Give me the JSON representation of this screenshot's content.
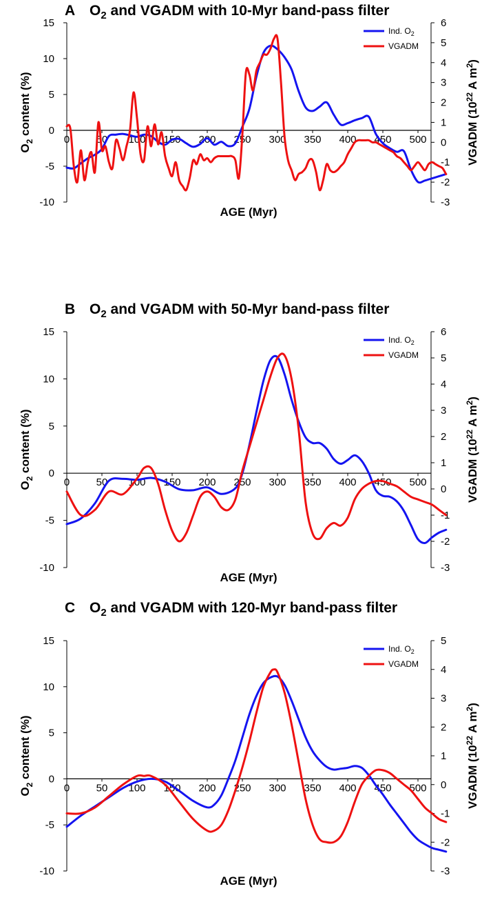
{
  "chart_data": [
    {
      "type": "line",
      "panel_label": "A",
      "title": "O2 and VGADM with 10-Myr band-pass filter",
      "title_parts": {
        "pre": "O",
        "sub": "2",
        "post": " and VGADM with 10-Myr band-pass filter"
      },
      "xlabel": "AGE (Myr)",
      "ylabel_left": {
        "pre": "O",
        "sub": "2",
        "post": " content (%)"
      },
      "ylabel_right": {
        "pre": "VGADM (10",
        "sup": "22",
        "mid": " A m",
        "sup2": "2",
        "post": ")"
      },
      "xlim": [
        0,
        550
      ],
      "xticks": [
        0,
        50,
        100,
        150,
        200,
        250,
        300,
        350,
        400,
        450,
        500
      ],
      "ylim_left": [
        -10,
        15
      ],
      "yticks_left": [
        -10,
        -5,
        0,
        5,
        10,
        15
      ],
      "ylim_right": [
        -3,
        6
      ],
      "yticks_right": [
        -3,
        -2,
        -1,
        0,
        1,
        2,
        3,
        4,
        5,
        6
      ],
      "legend": [
        "Ind. O2",
        "VGADM"
      ],
      "legend_parts": [
        {
          "pre": "Ind. O",
          "sub": "2"
        },
        {
          "pre": "VGADM",
          "sub": ""
        }
      ],
      "series": [
        {
          "name": "Ind. O2",
          "axis": "left",
          "color": "#1414f0",
          "x": [
            0,
            10,
            20,
            30,
            40,
            50,
            60,
            70,
            80,
            90,
            100,
            110,
            120,
            130,
            140,
            150,
            160,
            170,
            180,
            190,
            200,
            210,
            220,
            230,
            240,
            250,
            260,
            270,
            280,
            290,
            300,
            310,
            320,
            330,
            340,
            350,
            360,
            370,
            380,
            390,
            400,
            410,
            420,
            430,
            440,
            450,
            460,
            470,
            480,
            490,
            500,
            510,
            520,
            530,
            540
          ],
          "y": [
            -5.2,
            -5.3,
            -4.6,
            -3.9,
            -3.4,
            -2.6,
            -0.8,
            -0.6,
            -0.5,
            -0.7,
            -0.9,
            -0.6,
            -0.8,
            -1.6,
            -2.0,
            -1.3,
            -1.2,
            -1.8,
            -2.3,
            -1.9,
            -1.1,
            -2.0,
            -1.6,
            -2.2,
            -1.8,
            0.5,
            3.0,
            7.5,
            10.8,
            11.8,
            11.3,
            10.2,
            8.5,
            5.5,
            3.2,
            2.7,
            3.3,
            3.9,
            2.2,
            0.8,
            1.0,
            1.4,
            1.7,
            1.9,
            -0.5,
            -1.8,
            -2.5,
            -3.0,
            -2.9,
            -5.5,
            -7.2,
            -7.0,
            -6.7,
            -6.4,
            -6.1
          ]
        },
        {
          "name": "VGADM",
          "axis": "right",
          "color": "#ee1111",
          "x": [
            0,
            5,
            10,
            15,
            20,
            25,
            30,
            35,
            40,
            45,
            50,
            55,
            60,
            65,
            70,
            75,
            80,
            85,
            90,
            95,
            100,
            105,
            110,
            115,
            120,
            125,
            130,
            135,
            140,
            145,
            150,
            155,
            160,
            165,
            170,
            175,
            180,
            185,
            190,
            195,
            200,
            205,
            210,
            215,
            220,
            225,
            230,
            235,
            240,
            245,
            250,
            255,
            260,
            265,
            270,
            275,
            280,
            285,
            290,
            295,
            300,
            305,
            310,
            315,
            320,
            325,
            330,
            335,
            340,
            345,
            350,
            355,
            360,
            365,
            370,
            375,
            380,
            385,
            390,
            395,
            400,
            405,
            410,
            415,
            420,
            425,
            430,
            435,
            440,
            445,
            450,
            455,
            460,
            465,
            470,
            475,
            480,
            485,
            490,
            495,
            500,
            505,
            510,
            515,
            520,
            525,
            530,
            535,
            540
          ],
          "y": [
            0.8,
            0.7,
            -1.2,
            -2.0,
            -0.4,
            -1.9,
            -1.0,
            -0.5,
            -1.5,
            1.0,
            -0.4,
            -0.2,
            -1.0,
            -1.3,
            0.1,
            -0.3,
            -0.9,
            -0.2,
            0.6,
            2.5,
            1.2,
            -0.6,
            -0.9,
            0.8,
            -0.2,
            0.9,
            -0.1,
            0.5,
            -0.7,
            -1.3,
            -1.7,
            -1.0,
            -1.9,
            -2.2,
            -2.4,
            -1.8,
            -0.9,
            -1.1,
            -0.6,
            -0.9,
            -0.8,
            -1.0,
            -0.8,
            -0.7,
            -0.7,
            -0.7,
            -0.7,
            -0.7,
            -0.9,
            -1.8,
            0.4,
            3.5,
            3.4,
            2.6,
            3.6,
            4.0,
            4.4,
            4.4,
            4.7,
            5.2,
            5.2,
            3.0,
            0.3,
            -0.9,
            -1.4,
            -1.9,
            -1.6,
            -1.5,
            -1.3,
            -0.9,
            -0.9,
            -1.5,
            -2.4,
            -1.9,
            -1.1,
            -1.4,
            -1.5,
            -1.4,
            -1.2,
            -1.0,
            -0.6,
            -0.3,
            0.0,
            0.1,
            0.1,
            0.1,
            0.1,
            0.0,
            0.0,
            -0.1,
            -0.2,
            -0.3,
            -0.4,
            -0.5,
            -0.7,
            -0.8,
            -1.0,
            -1.2,
            -1.4,
            -1.2,
            -1.0,
            -1.2,
            -1.4,
            -1.1,
            -1.0,
            -1.1,
            -1.2,
            -1.3,
            -1.6
          ]
        }
      ]
    },
    {
      "type": "line",
      "panel_label": "B",
      "title": "O2 and VGADM with 50-Myr band-pass filter",
      "title_parts": {
        "pre": "O",
        "sub": "2",
        "post": " and VGADM with 50-Myr band-pass filter"
      },
      "xlabel": "AGE (Myr)",
      "ylabel_left": {
        "pre": "O",
        "sub": "2",
        "post": " content (%)"
      },
      "ylabel_right": {
        "pre": "VGADM (10",
        "sup": "22",
        "mid": " A m",
        "sup2": "2",
        "post": ")"
      },
      "xlim": [
        0,
        550
      ],
      "xticks": [
        0,
        50,
        100,
        150,
        200,
        250,
        300,
        350,
        400,
        450,
        500
      ],
      "ylim_left": [
        -10,
        15
      ],
      "yticks_left": [
        -10,
        -5,
        0,
        5,
        10,
        15
      ],
      "ylim_right": [
        -3,
        6
      ],
      "yticks_right": [
        -3,
        -2,
        -1,
        0,
        1,
        2,
        3,
        4,
        5,
        6
      ],
      "legend": [
        "Ind. O2",
        "VGADM"
      ],
      "legend_parts": [
        {
          "pre": "Ind. O",
          "sub": "2"
        },
        {
          "pre": "VGADM",
          "sub": ""
        }
      ],
      "series": [
        {
          "name": "Ind. O2",
          "axis": "left",
          "color": "#1414f0",
          "x": [
            0,
            20,
            40,
            60,
            80,
            100,
            120,
            140,
            160,
            180,
            200,
            220,
            240,
            250,
            260,
            270,
            280,
            290,
            300,
            310,
            320,
            330,
            340,
            350,
            360,
            370,
            380,
            390,
            400,
            410,
            420,
            430,
            440,
            450,
            460,
            470,
            480,
            490,
            500,
            510,
            520,
            530,
            540
          ],
          "y": [
            -5.4,
            -4.8,
            -3.2,
            -0.8,
            -0.6,
            -0.7,
            -0.5,
            -0.9,
            -1.7,
            -1.8,
            -1.5,
            -2.2,
            -1.6,
            0.0,
            3.0,
            6.5,
            9.8,
            12.0,
            12.3,
            10.5,
            7.8,
            5.5,
            3.8,
            3.2,
            3.2,
            2.6,
            1.5,
            1.0,
            1.4,
            1.9,
            1.3,
            0.0,
            -1.8,
            -2.4,
            -2.5,
            -3.0,
            -4.0,
            -5.5,
            -7.0,
            -7.4,
            -6.8,
            -6.3,
            -6.0
          ]
        },
        {
          "name": "VGADM",
          "axis": "right",
          "color": "#ee1111",
          "x": [
            0,
            20,
            40,
            60,
            80,
            100,
            110,
            120,
            130,
            140,
            150,
            160,
            170,
            180,
            190,
            200,
            210,
            220,
            230,
            240,
            250,
            260,
            270,
            280,
            290,
            300,
            310,
            320,
            330,
            340,
            350,
            360,
            370,
            380,
            390,
            400,
            410,
            420,
            430,
            440,
            450,
            460,
            470,
            480,
            490,
            500,
            510,
            520,
            530,
            540
          ],
          "y": [
            -0.1,
            -1.0,
            -0.8,
            -0.1,
            -0.2,
            0.4,
            0.8,
            0.8,
            0.2,
            -0.8,
            -1.6,
            -2.0,
            -1.7,
            -1.0,
            -0.3,
            -0.1,
            -0.3,
            -0.7,
            -0.8,
            -0.4,
            0.7,
            1.6,
            2.5,
            3.4,
            4.3,
            5.0,
            5.1,
            4.2,
            2.3,
            -0.5,
            -1.7,
            -1.9,
            -1.5,
            -1.3,
            -1.4,
            -1.1,
            -0.4,
            0.0,
            0.2,
            0.3,
            0.3,
            0.2,
            0.1,
            -0.1,
            -0.3,
            -0.4,
            -0.5,
            -0.6,
            -0.8,
            -1.0
          ]
        }
      ]
    },
    {
      "type": "line",
      "panel_label": "C",
      "title": "O2 and VGADM with 120-Myr band-pass filter",
      "title_parts": {
        "pre": "O",
        "sub": "2",
        "post": " and VGADM with 120-Myr band-pass filter"
      },
      "xlabel": "AGE (Myr)",
      "ylabel_left": {
        "pre": "O",
        "sub": "2",
        "post": " content (%)"
      },
      "ylabel_right": {
        "pre": "VGADM (10",
        "sup": "22",
        "mid": " A m",
        "sup2": "2",
        "post": ")"
      },
      "xlim": [
        0,
        550
      ],
      "xticks": [
        0,
        50,
        100,
        150,
        200,
        250,
        300,
        350,
        400,
        450,
        500
      ],
      "ylim_left": [
        -10,
        15
      ],
      "yticks_left": [
        -10,
        -5,
        0,
        5,
        10,
        15
      ],
      "ylim_right": [
        -3,
        5
      ],
      "yticks_right": [
        -3,
        -2,
        -1,
        0,
        1,
        2,
        3,
        4,
        5
      ],
      "legend": [
        "Ind. O2",
        "VGADM"
      ],
      "legend_parts": [
        {
          "pre": "Ind. O",
          "sub": "2"
        },
        {
          "pre": "VGADM",
          "sub": ""
        }
      ],
      "series": [
        {
          "name": "Ind. O2",
          "axis": "left",
          "color": "#1414f0",
          "x": [
            0,
            20,
            40,
            60,
            80,
            100,
            120,
            140,
            160,
            180,
            200,
            210,
            220,
            230,
            240,
            250,
            260,
            270,
            280,
            290,
            300,
            310,
            320,
            330,
            340,
            350,
            360,
            370,
            380,
            390,
            400,
            410,
            420,
            430,
            440,
            450,
            460,
            470,
            480,
            490,
            500,
            510,
            520,
            530,
            540
          ],
          "y": [
            -5.2,
            -4.0,
            -3.0,
            -2.0,
            -1.0,
            -0.3,
            0.0,
            -0.3,
            -1.3,
            -2.4,
            -3.1,
            -2.8,
            -1.8,
            0.0,
            2.0,
            4.5,
            7.0,
            9.0,
            10.4,
            11.0,
            11.1,
            10.2,
            8.5,
            6.5,
            4.5,
            3.0,
            2.0,
            1.3,
            1.0,
            1.1,
            1.2,
            1.4,
            1.2,
            0.4,
            -0.7,
            -1.7,
            -2.8,
            -3.8,
            -4.8,
            -5.8,
            -6.6,
            -7.1,
            -7.5,
            -7.7,
            -7.9
          ]
        },
        {
          "name": "VGADM",
          "axis": "right",
          "color": "#ee1111",
          "x": [
            0,
            20,
            40,
            60,
            80,
            100,
            110,
            120,
            140,
            160,
            180,
            200,
            210,
            220,
            230,
            240,
            250,
            260,
            270,
            280,
            290,
            295,
            300,
            310,
            320,
            330,
            340,
            350,
            360,
            370,
            380,
            390,
            400,
            410,
            420,
            430,
            440,
            450,
            460,
            470,
            480,
            490,
            500,
            510,
            520,
            530,
            540
          ],
          "y": [
            -1.0,
            -1.0,
            -0.8,
            -0.4,
            0.0,
            0.3,
            0.3,
            0.3,
            0.0,
            -0.6,
            -1.2,
            -1.6,
            -1.6,
            -1.4,
            -0.9,
            -0.2,
            0.6,
            1.5,
            2.5,
            3.4,
            3.9,
            4.0,
            3.9,
            3.2,
            2.1,
            0.8,
            -0.5,
            -1.4,
            -1.9,
            -2.0,
            -2.0,
            -1.8,
            -1.3,
            -0.6,
            0.0,
            0.3,
            0.5,
            0.5,
            0.4,
            0.2,
            0.0,
            -0.2,
            -0.5,
            -0.8,
            -1.0,
            -1.2,
            -1.3
          ]
        }
      ]
    }
  ]
}
